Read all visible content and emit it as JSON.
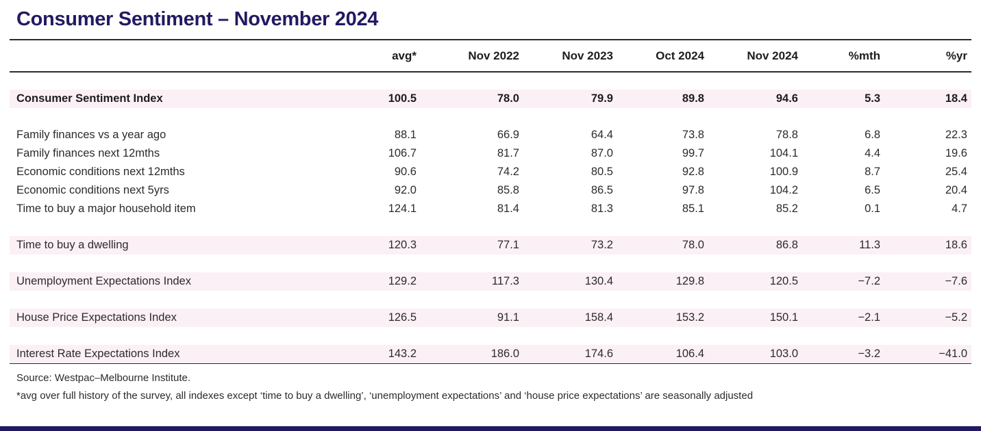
{
  "header": {
    "title": "Consumer Sentiment – November 2024"
  },
  "chart_data": {
    "type": "table",
    "title": "Consumer Sentiment – November 2024",
    "columns": [
      "avg*",
      "Nov 2022",
      "Nov 2023",
      "Oct 2024",
      "Nov 2024",
      "%mth",
      "%yr"
    ],
    "rows": [
      {
        "label": "Consumer Sentiment Index",
        "values": [
          100.5,
          78.0,
          79.9,
          89.8,
          94.6,
          5.3,
          18.4
        ],
        "bold": true,
        "shaded": true,
        "gap_before": true
      },
      {
        "label": "Family finances vs a year ago",
        "values": [
          88.1,
          66.9,
          64.4,
          73.8,
          78.8,
          6.8,
          22.3
        ],
        "bold": false,
        "shaded": false,
        "gap_before": true
      },
      {
        "label": "Family finances next 12mths",
        "values": [
          106.7,
          81.7,
          87.0,
          99.7,
          104.1,
          4.4,
          19.6
        ],
        "bold": false,
        "shaded": false,
        "gap_before": false
      },
      {
        "label": "Economic conditions next 12mths",
        "values": [
          90.6,
          74.2,
          80.5,
          92.8,
          100.9,
          8.7,
          25.4
        ],
        "bold": false,
        "shaded": false,
        "gap_before": false
      },
      {
        "label": "Economic conditions next 5yrs",
        "values": [
          92.0,
          85.8,
          86.5,
          97.8,
          104.2,
          6.5,
          20.4
        ],
        "bold": false,
        "shaded": false,
        "gap_before": false
      },
      {
        "label": "Time to buy a major household item",
        "values": [
          124.1,
          81.4,
          81.3,
          85.1,
          85.2,
          0.1,
          4.7
        ],
        "bold": false,
        "shaded": false,
        "gap_before": false
      },
      {
        "label": "Time to buy a dwelling",
        "values": [
          120.3,
          77.1,
          73.2,
          78.0,
          86.8,
          11.3,
          18.6
        ],
        "bold": false,
        "shaded": true,
        "gap_before": true
      },
      {
        "label": "Unemployment Expectations Index",
        "values": [
          129.2,
          117.3,
          130.4,
          129.8,
          120.5,
          -7.2,
          -7.6
        ],
        "bold": false,
        "shaded": true,
        "gap_before": true
      },
      {
        "label": "House Price Expectations Index",
        "values": [
          126.5,
          91.1,
          158.4,
          153.2,
          150.1,
          -2.1,
          -5.2
        ],
        "bold": false,
        "shaded": true,
        "gap_before": true
      },
      {
        "label": "Interest Rate Expectations Index",
        "values": [
          143.2,
          186.0,
          174.6,
          106.4,
          103.0,
          -3.2,
          -41.0
        ],
        "bold": false,
        "shaded": true,
        "gap_before": true
      }
    ],
    "legend_position": "none",
    "grid": "horizontal-rules-only"
  },
  "footer": {
    "source": "Source: Westpac–Melbourne Institute.",
    "note": "*avg over full history of the survey, all indexes except ‘time to buy a dwelling’, ‘unemployment expectations’ and ‘house price expectations’ are seasonally adjusted"
  },
  "colors": {
    "title": "#221a61",
    "shaded_row": "#fbf0f6",
    "rule": "#2b2b2b",
    "bottom_bar": "#221a61"
  }
}
